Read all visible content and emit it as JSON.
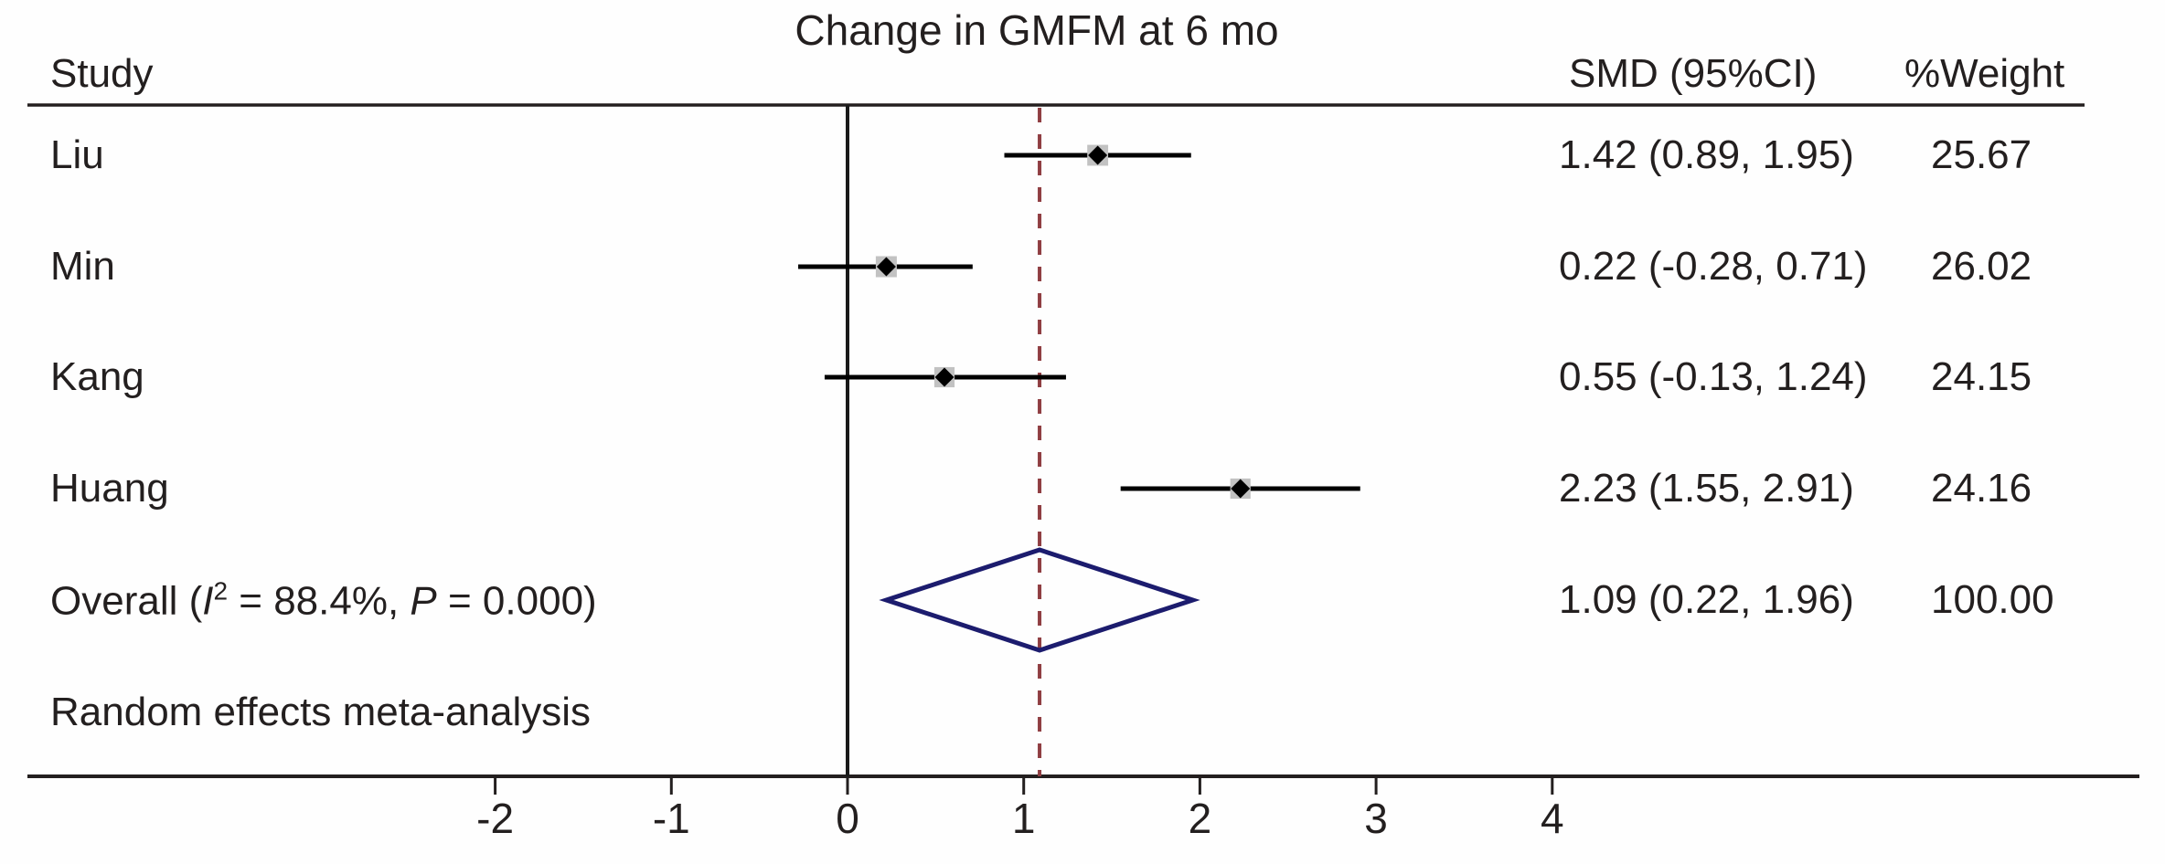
{
  "title": "Change in GMFM at 6 mo",
  "header": {
    "study": "Study",
    "smd": "SMD (95%CI)",
    "weight": "%Weight"
  },
  "note": "Random effects meta-analysis",
  "overall_label": {
    "prefix": "Overall (",
    "i_symbol": "I",
    "i_sup": "2",
    "after_i": " = 88.4%, ",
    "p_symbol": "P",
    "after_p": " = 0.000)"
  },
  "overall_values": {
    "smd_text": "1.09 (0.22, 1.96)",
    "weight_text": "100.00"
  },
  "chart_data": {
    "type": "forest",
    "title": "Change in GMFM at 6 mo",
    "xlabel": "",
    "x_ticks": [
      -2,
      -1,
      0,
      1,
      2,
      3,
      4
    ],
    "xlim": [
      -3,
      5.2
    ],
    "null_line": 0,
    "overall_estimate_line": 1.09,
    "effect_measure": "SMD (95%CI)",
    "studies": [
      {
        "label": "Liu",
        "est": 1.42,
        "lo": 0.89,
        "hi": 1.95,
        "smd_text": "1.42 (0.89, 1.95)",
        "weight": 25.67,
        "weight_text": "25.67"
      },
      {
        "label": "Min",
        "est": 0.22,
        "lo": -0.28,
        "hi": 0.71,
        "smd_text": "0.22 (-0.28, 0.71)",
        "weight": 26.02,
        "weight_text": "26.02"
      },
      {
        "label": "Kang",
        "est": 0.55,
        "lo": -0.13,
        "hi": 1.24,
        "smd_text": "0.55 (-0.13, 1.24)",
        "weight": 24.15,
        "weight_text": "24.15"
      },
      {
        "label": "Huang",
        "est": 2.23,
        "lo": 1.55,
        "hi": 2.91,
        "smd_text": "2.23 (1.55, 2.91)",
        "weight": 24.16,
        "weight_text": "24.16"
      }
    ],
    "overall": {
      "label": "Overall (I2 = 88.4%, P = 0.000)",
      "est": 1.09,
      "lo": 0.22,
      "hi": 1.96,
      "smd_text": "1.09 (0.22, 1.96)",
      "weight": 100.0,
      "weight_text": "100.00",
      "heterogeneity_i2": "88.4%",
      "p_value": "0.000"
    },
    "model": "Random effects meta-analysis",
    "legend_position": "none",
    "grid": false
  },
  "colors": {
    "ink": "#231f1f",
    "null_line": "#1a1a1a",
    "overall_dashed_line": "#8f3e42",
    "diamond_outline": "#1c1c6e",
    "weight_box": "#c2c2c2",
    "point_marker": "#000000",
    "background": "#fefefe"
  }
}
